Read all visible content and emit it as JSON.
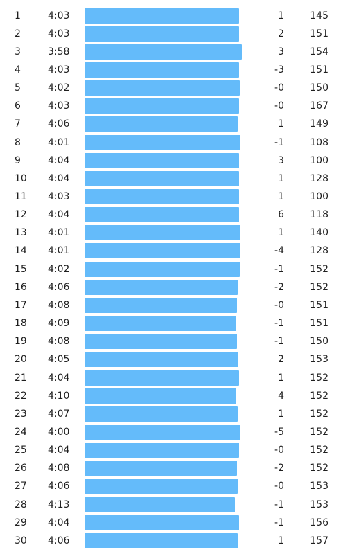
{
  "colors": {
    "bar": "#64bbfa"
  },
  "pace_scale": {
    "min_seconds": 230,
    "max_seconds": 270
  },
  "splits": [
    {
      "km": "1",
      "pace": "4:03",
      "elevation": "1",
      "heart_rate": "145"
    },
    {
      "km": "2",
      "pace": "4:03",
      "elevation": "2",
      "heart_rate": "151"
    },
    {
      "km": "3",
      "pace": "3:58",
      "elevation": "3",
      "heart_rate": "154"
    },
    {
      "km": "4",
      "pace": "4:03",
      "elevation": "-3",
      "heart_rate": "151"
    },
    {
      "km": "5",
      "pace": "4:02",
      "elevation": "-0",
      "heart_rate": "150"
    },
    {
      "km": "6",
      "pace": "4:03",
      "elevation": "-0",
      "heart_rate": "167"
    },
    {
      "km": "7",
      "pace": "4:06",
      "elevation": "1",
      "heart_rate": "149"
    },
    {
      "km": "8",
      "pace": "4:01",
      "elevation": "-1",
      "heart_rate": "108"
    },
    {
      "km": "9",
      "pace": "4:04",
      "elevation": "3",
      "heart_rate": "100"
    },
    {
      "km": "10",
      "pace": "4:04",
      "elevation": "1",
      "heart_rate": "128"
    },
    {
      "km": "11",
      "pace": "4:03",
      "elevation": "1",
      "heart_rate": "100"
    },
    {
      "km": "12",
      "pace": "4:04",
      "elevation": "6",
      "heart_rate": "118"
    },
    {
      "km": "13",
      "pace": "4:01",
      "elevation": "1",
      "heart_rate": "140"
    },
    {
      "km": "14",
      "pace": "4:01",
      "elevation": "-4",
      "heart_rate": "128"
    },
    {
      "km": "15",
      "pace": "4:02",
      "elevation": "-1",
      "heart_rate": "152"
    },
    {
      "km": "16",
      "pace": "4:06",
      "elevation": "-2",
      "heart_rate": "152"
    },
    {
      "km": "17",
      "pace": "4:08",
      "elevation": "-0",
      "heart_rate": "151"
    },
    {
      "km": "18",
      "pace": "4:09",
      "elevation": "-1",
      "heart_rate": "151"
    },
    {
      "km": "19",
      "pace": "4:08",
      "elevation": "-1",
      "heart_rate": "150"
    },
    {
      "km": "20",
      "pace": "4:05",
      "elevation": "2",
      "heart_rate": "153"
    },
    {
      "km": "21",
      "pace": "4:04",
      "elevation": "1",
      "heart_rate": "152"
    },
    {
      "km": "22",
      "pace": "4:10",
      "elevation": "4",
      "heart_rate": "152"
    },
    {
      "km": "23",
      "pace": "4:07",
      "elevation": "1",
      "heart_rate": "152"
    },
    {
      "km": "24",
      "pace": "4:00",
      "elevation": "-5",
      "heart_rate": "152"
    },
    {
      "km": "25",
      "pace": "4:04",
      "elevation": "-0",
      "heart_rate": "152"
    },
    {
      "km": "26",
      "pace": "4:08",
      "elevation": "-2",
      "heart_rate": "152"
    },
    {
      "km": "27",
      "pace": "4:06",
      "elevation": "-0",
      "heart_rate": "153"
    },
    {
      "km": "28",
      "pace": "4:13",
      "elevation": "-1",
      "heart_rate": "153"
    },
    {
      "km": "29",
      "pace": "4:04",
      "elevation": "-1",
      "heart_rate": "156"
    },
    {
      "km": "30",
      "pace": "4:06",
      "elevation": "1",
      "heart_rate": "157"
    }
  ]
}
